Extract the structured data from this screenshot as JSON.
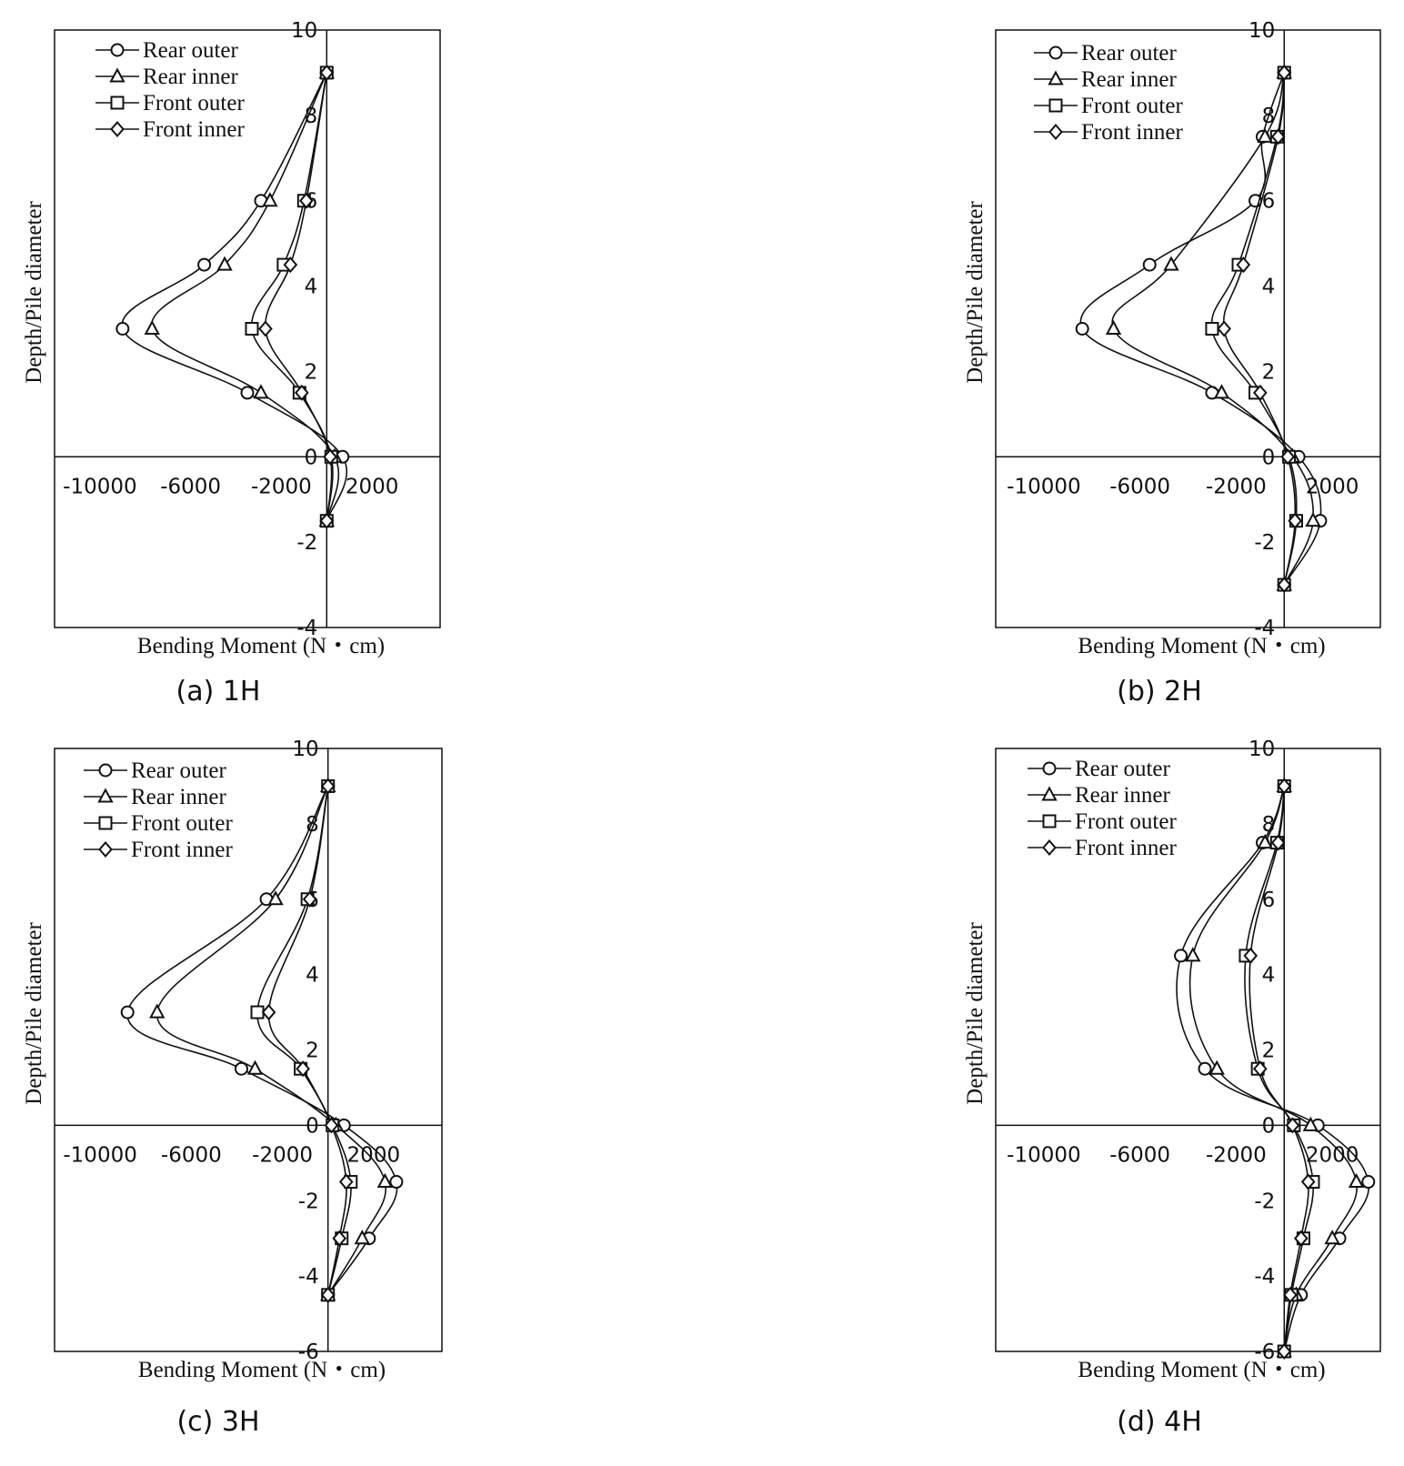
{
  "chart_data": [
    {
      "type": "line",
      "panel_caption": "(a) 1H",
      "xlabel": "Bending Moment (N・cm)",
      "ylabel": "Depth/Pile diameter",
      "xlim": [
        -12000,
        5000
      ],
      "ylim": [
        -4,
        10
      ],
      "x_ticks": [
        "-10000",
        "-6000",
        "-2000",
        "2000"
      ],
      "y_ticks": [
        "-4",
        "-2",
        "0",
        "2",
        "4",
        "6",
        "8",
        "10"
      ],
      "legend": "top-left",
      "series": [
        {
          "name": "Rear outer",
          "marker": "circle",
          "points": [
            [
              0,
              9
            ],
            [
              -2900,
              6
            ],
            [
              -5400,
              4.5
            ],
            [
              -9000,
              3
            ],
            [
              -3500,
              1.5
            ],
            [
              700,
              0
            ],
            [
              0,
              -1.5
            ]
          ]
        },
        {
          "name": "Rear inner",
          "marker": "triangle",
          "points": [
            [
              0,
              9
            ],
            [
              -2500,
              6
            ],
            [
              -4500,
              4.5
            ],
            [
              -7700,
              3
            ],
            [
              -2900,
              1.5
            ],
            [
              350,
              0
            ],
            [
              0,
              -1.5
            ]
          ]
        },
        {
          "name": "Front outer",
          "marker": "square",
          "points": [
            [
              0,
              9
            ],
            [
              -1000,
              6
            ],
            [
              -1900,
              4.5
            ],
            [
              -3300,
              3
            ],
            [
              -1200,
              1.5
            ],
            [
              200,
              0
            ],
            [
              0,
              -1.5
            ]
          ]
        },
        {
          "name": "Front inner",
          "marker": "diamond",
          "points": [
            [
              0,
              9
            ],
            [
              -900,
              6
            ],
            [
              -1600,
              4.5
            ],
            [
              -2700,
              3
            ],
            [
              -1100,
              1.5
            ],
            [
              150,
              0
            ],
            [
              0,
              -1.5
            ]
          ]
        }
      ]
    },
    {
      "type": "line",
      "panel_caption": "(b) 2H",
      "xlabel": "Bending Moment (N・cm)",
      "ylabel": "Depth/Pile diameter",
      "xlim": [
        -12000,
        4000
      ],
      "ylim": [
        -4,
        10
      ],
      "x_ticks": [
        "-10000",
        "-6000",
        "-2000",
        "2000"
      ],
      "y_ticks": [
        "-4",
        "-2",
        "0",
        "2",
        "4",
        "6",
        "8",
        "10"
      ],
      "legend": "top-left",
      "series": [
        {
          "name": "Rear outer",
          "marker": "circle",
          "points": [
            [
              0,
              9
            ],
            [
              -900,
              7.5
            ],
            [
              -1200,
              6
            ],
            [
              -5600,
              4.5
            ],
            [
              -8400,
              3
            ],
            [
              -3000,
              1.5
            ],
            [
              600,
              0
            ],
            [
              1500,
              -1.5
            ],
            [
              0,
              -3
            ]
          ]
        },
        {
          "name": "Rear inner",
          "marker": "triangle",
          "points": [
            [
              0,
              9
            ],
            [
              -800,
              7.5
            ],
            [
              -4700,
              4.5
            ],
            [
              -7100,
              3
            ],
            [
              -2600,
              1.5
            ],
            [
              350,
              0
            ],
            [
              1200,
              -1.5
            ],
            [
              0,
              -3
            ]
          ]
        },
        {
          "name": "Front outer",
          "marker": "square",
          "points": [
            [
              0,
              9
            ],
            [
              -300,
              7.5
            ],
            [
              -1900,
              4.5
            ],
            [
              -3000,
              3
            ],
            [
              -1200,
              1.5
            ],
            [
              200,
              0
            ],
            [
              500,
              -1.5
            ],
            [
              0,
              -3
            ]
          ]
        },
        {
          "name": "Front inner",
          "marker": "diamond",
          "points": [
            [
              0,
              9
            ],
            [
              -250,
              7.5
            ],
            [
              -1700,
              4.5
            ],
            [
              -2500,
              3
            ],
            [
              -1000,
              1.5
            ],
            [
              150,
              0
            ],
            [
              450,
              -1.5
            ],
            [
              0,
              -3
            ]
          ]
        }
      ]
    },
    {
      "type": "line",
      "panel_caption": "(c) 3H",
      "xlabel": "Bending Moment (N・cm)",
      "ylabel": "Depth/Pile diameter",
      "xlim": [
        -12000,
        5000
      ],
      "ylim": [
        -6,
        10
      ],
      "x_ticks": [
        "-10000",
        "-6000",
        "-2000",
        "2000"
      ],
      "y_ticks": [
        "-6",
        "-4",
        "-2",
        "0",
        "2",
        "4",
        "6",
        "8",
        "10"
      ],
      "legend": "top-left",
      "series": [
        {
          "name": "Rear outer",
          "marker": "circle",
          "points": [
            [
              0,
              9
            ],
            [
              -2700,
              6
            ],
            [
              -8800,
              3
            ],
            [
              -3800,
              1.5
            ],
            [
              700,
              0
            ],
            [
              3000,
              -1.5
            ],
            [
              1800,
              -3
            ],
            [
              0,
              -4.5
            ]
          ]
        },
        {
          "name": "Rear inner",
          "marker": "triangle",
          "points": [
            [
              0,
              9
            ],
            [
              -2300,
              6
            ],
            [
              -7500,
              3
            ],
            [
              -3200,
              1.5
            ],
            [
              350,
              0
            ],
            [
              2500,
              -1.5
            ],
            [
              1500,
              -3
            ],
            [
              0,
              -4.5
            ]
          ]
        },
        {
          "name": "Front outer",
          "marker": "square",
          "points": [
            [
              0,
              9
            ],
            [
              -900,
              6
            ],
            [
              -3100,
              3
            ],
            [
              -1200,
              1.5
            ],
            [
              200,
              0
            ],
            [
              1000,
              -1.5
            ],
            [
              600,
              -3
            ],
            [
              0,
              -4.5
            ]
          ]
        },
        {
          "name": "Front inner",
          "marker": "diamond",
          "points": [
            [
              0,
              9
            ],
            [
              -800,
              6
            ],
            [
              -2600,
              3
            ],
            [
              -1100,
              1.5
            ],
            [
              150,
              0
            ],
            [
              800,
              -1.5
            ],
            [
              500,
              -3
            ],
            [
              0,
              -4.5
            ]
          ]
        }
      ]
    },
    {
      "type": "line",
      "panel_caption": "(d) 4H",
      "xlabel": "Bending Moment (N・cm)",
      "ylabel": "Depth/Pile diameter",
      "xlim": [
        -12000,
        4000
      ],
      "ylim": [
        -6,
        10
      ],
      "x_ticks": [
        "-10000",
        "-6000",
        "-2000",
        "2000"
      ],
      "y_ticks": [
        "-6",
        "-4",
        "-2",
        "0",
        "2",
        "4",
        "6",
        "8",
        "10"
      ],
      "legend": "top-left",
      "series": [
        {
          "name": "Rear outer",
          "marker": "circle",
          "points": [
            [
              0,
              9
            ],
            [
              -900,
              7.5
            ],
            [
              -4300,
              4.5
            ],
            [
              -3300,
              1.5
            ],
            [
              1400,
              0
            ],
            [
              3500,
              -1.5
            ],
            [
              2300,
              -3
            ],
            [
              700,
              -4.5
            ],
            [
              0,
              -6
            ]
          ]
        },
        {
          "name": "Rear inner",
          "marker": "triangle",
          "points": [
            [
              0,
              9
            ],
            [
              -800,
              7.5
            ],
            [
              -3800,
              4.5
            ],
            [
              -2800,
              1.5
            ],
            [
              1100,
              0
            ],
            [
              3000,
              -1.5
            ],
            [
              2000,
              -3
            ],
            [
              500,
              -4.5
            ],
            [
              0,
              -6
            ]
          ]
        },
        {
          "name": "Front outer",
          "marker": "square",
          "points": [
            [
              0,
              9
            ],
            [
              -300,
              7.5
            ],
            [
              -1600,
              4.5
            ],
            [
              -1100,
              1.5
            ],
            [
              400,
              0
            ],
            [
              1200,
              -1.5
            ],
            [
              800,
              -3
            ],
            [
              300,
              -4.5
            ],
            [
              0,
              -6
            ]
          ]
        },
        {
          "name": "Front inner",
          "marker": "diamond",
          "points": [
            [
              0,
              9
            ],
            [
              -250,
              7.5
            ],
            [
              -1400,
              4.5
            ],
            [
              -1000,
              1.5
            ],
            [
              350,
              0
            ],
            [
              1000,
              -1.5
            ],
            [
              700,
              -3
            ],
            [
              250,
              -4.5
            ],
            [
              0,
              -6
            ]
          ]
        }
      ]
    }
  ]
}
